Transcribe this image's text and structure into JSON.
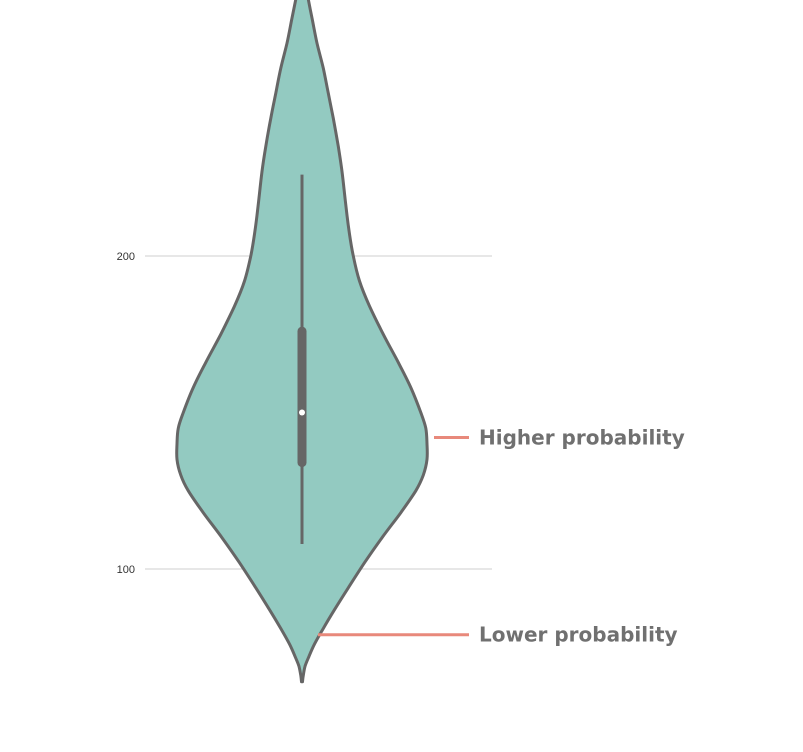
{
  "chart_data": {
    "type": "violin",
    "title": "",
    "xlabel": "",
    "ylabel": "",
    "ylim": [
      64,
      220
    ],
    "yticks": [
      100,
      200
    ],
    "ytick_labels": [
      "100",
      "200"
    ],
    "grid": true,
    "density_profile": [
      [
        64,
        0.004
      ],
      [
        66,
        0.01
      ],
      [
        69,
        0.025
      ],
      [
        72,
        0.055
      ],
      [
        76,
        0.1
      ],
      [
        81,
        0.17
      ],
      [
        87,
        0.26
      ],
      [
        94,
        0.37
      ],
      [
        102,
        0.5
      ],
      [
        110,
        0.64
      ],
      [
        118,
        0.79
      ],
      [
        125,
        0.91
      ],
      [
        130,
        0.97
      ],
      [
        135,
        1.0
      ],
      [
        140,
        1.0
      ],
      [
        145,
        0.99
      ],
      [
        150,
        0.95
      ],
      [
        158,
        0.87
      ],
      [
        166,
        0.77
      ],
      [
        175,
        0.65
      ],
      [
        184,
        0.54
      ],
      [
        192,
        0.46
      ],
      [
        200,
        0.41
      ],
      [
        207,
        0.38
      ],
      [
        213,
        0.36
      ],
      [
        220,
        0.34
      ],
      [
        227,
        0.32
      ],
      [
        235,
        0.29
      ],
      [
        244,
        0.25
      ],
      [
        252,
        0.21
      ],
      [
        260,
        0.17
      ],
      [
        268,
        0.12
      ],
      [
        276,
        0.08
      ],
      [
        282,
        0.05
      ],
      [
        286,
        0.03
      ],
      [
        289,
        0.01
      ]
    ],
    "box": {
      "whisker_low": 108,
      "q1": 134,
      "median": 150,
      "q3": 176,
      "whisker_high": 226
    },
    "colors": {
      "fill": "#93cac1",
      "stroke": "#666666",
      "box": "#666666",
      "median": "#ffffff",
      "grid": "#cfcfcf",
      "annotation_line": "#e8897b"
    },
    "annotations": [
      {
        "label": "Higher probability",
        "y": 142
      },
      {
        "label": "Lower probability",
        "y": 79
      }
    ]
  }
}
